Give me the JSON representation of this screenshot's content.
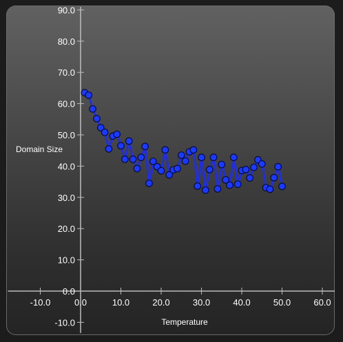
{
  "chart_data": {
    "type": "line",
    "xlabel": "Temperature",
    "ylabel": "Domain Size",
    "xlim": [
      -17,
      64
    ],
    "ylim": [
      -13,
      92
    ],
    "x_ticks": [
      -10,
      0,
      10,
      20,
      30,
      40,
      50,
      60
    ],
    "y_ticks": [
      -10,
      0,
      10,
      20,
      30,
      40,
      50,
      60,
      70,
      80,
      90
    ],
    "x_tick_labels": [
      "-10.0",
      "0.0",
      "10.0",
      "20.0",
      "30.0",
      "40.0",
      "50.0",
      "60.0"
    ],
    "y_tick_labels": [
      "-10.0",
      "0.0",
      "10.0",
      "20.0",
      "30.0",
      "40.0",
      "50.0",
      "60.0",
      "70.0",
      "80.0",
      "90.0"
    ],
    "grid": false,
    "legend": false,
    "line_color": "#1f2fe0",
    "marker_color": "#1a3bff",
    "series": [
      {
        "x": [
          1,
          2,
          3,
          4,
          5,
          6,
          7,
          8,
          9,
          10,
          11,
          12,
          13,
          14,
          15,
          16,
          17,
          18,
          19,
          20,
          21,
          22,
          23,
          24,
          25,
          26,
          27,
          28,
          29,
          30,
          31,
          32,
          33,
          34,
          35,
          36,
          37,
          38,
          39,
          40,
          41,
          42,
          43,
          44,
          45,
          46,
          47,
          48,
          49,
          50
        ],
        "values": [
          63.5,
          62.7,
          58.3,
          55.2,
          52.3,
          50.8,
          45.5,
          49.6,
          50.2,
          46.5,
          42.2,
          48.0,
          42.2,
          39.2,
          42.8,
          46.3,
          34.5,
          41.5,
          39.8,
          38.5,
          45.2,
          37.2,
          38.8,
          39.2,
          43.5,
          41.6,
          44.6,
          45.2,
          33.6,
          42.8,
          32.3,
          38.9,
          42.8,
          32.7,
          40.5,
          35.6,
          33.9,
          42.8,
          34.2,
          38.6,
          38.9,
          36.2,
          39.6,
          42.0,
          40.7,
          33.1,
          32.6,
          36.3,
          39.8,
          33.5
        ]
      }
    ]
  }
}
